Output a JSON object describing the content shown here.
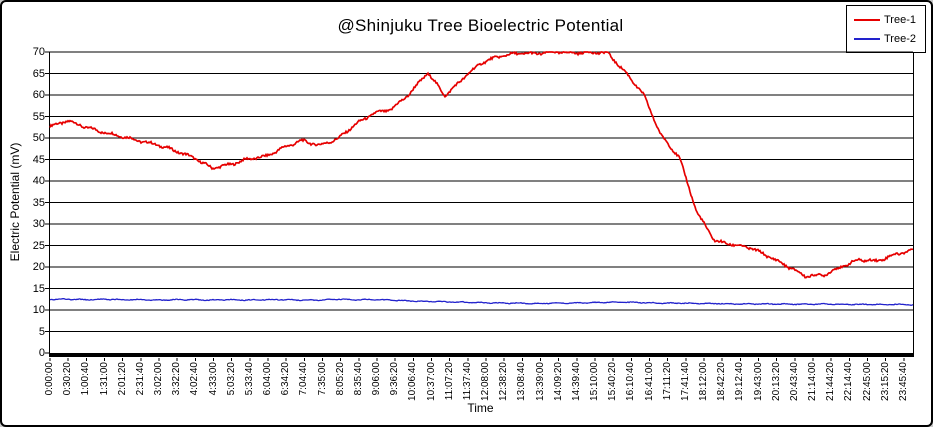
{
  "window": {
    "background": "#ffffff",
    "border_color": "#000000"
  },
  "chart_data": {
    "type": "line",
    "title": "@Shinjuku Tree Bioelectric Potential",
    "xlabel": "Time",
    "ylabel": "Electric Potential (mV)",
    "ylim": [
      0,
      70
    ],
    "y_tick_step": 5,
    "y_ticks": [
      0,
      5,
      10,
      15,
      20,
      25,
      30,
      35,
      40,
      45,
      50,
      55,
      60,
      65,
      70
    ],
    "grid": "horizontal-only",
    "legend_position": "top-right",
    "x_tick_labels": [
      "0:00:00",
      "0:30:20",
      "1:00:40",
      "1:31:00",
      "2:01:20",
      "2:31:40",
      "3:02:00",
      "3:32:20",
      "4:02:40",
      "4:33:00",
      "5:03:20",
      "5:33:40",
      "6:04:00",
      "6:34:20",
      "7:04:40",
      "7:35:00",
      "8:05:20",
      "8:35:40",
      "9:06:00",
      "9:36:20",
      "10:06:40",
      "10:37:00",
      "11:07:20",
      "11:37:40",
      "12:08:00",
      "12:38:20",
      "13:08:40",
      "13:39:00",
      "14:09:20",
      "14:39:40",
      "15:10:00",
      "15:40:20",
      "16:10:40",
      "16:41:00",
      "17:11:20",
      "17:41:40",
      "18:12:00",
      "18:42:20",
      "19:12:40",
      "19:43:00",
      "20:13:20",
      "20:43:40",
      "21:14:00",
      "21:44:20",
      "22:14:40",
      "22:45:00",
      "23:15:20",
      "23:45:40"
    ],
    "series": [
      {
        "name": "Tree-1",
        "color": "#e60000",
        "values": [
          52.7,
          54.0,
          52.5,
          51.3,
          50.4,
          49.3,
          48.4,
          47.0,
          45.4,
          43.0,
          43.8,
          45.1,
          45.7,
          47.8,
          49.4,
          48.3,
          49.8,
          53.2,
          55.7,
          56.7,
          60.3,
          65.2,
          59.8,
          64.0,
          67.5,
          69.0,
          69.7,
          69.6,
          70.0,
          69.8,
          69.9,
          69.8,
          65.3,
          60.2,
          50.5,
          45.5,
          32.5,
          26.0,
          25.2,
          24.4,
          22.4,
          20.2,
          17.9,
          18.1,
          20.0,
          21.7,
          21.4,
          22.9,
          24.0
        ]
      },
      {
        "name": "Tree-2",
        "color": "#2222cc",
        "values": [
          12.5,
          12.5,
          12.4,
          12.5,
          12.4,
          12.4,
          12.3,
          12.4,
          12.4,
          12.3,
          12.4,
          12.3,
          12.4,
          12.4,
          12.3,
          12.3,
          12.5,
          12.4,
          12.4,
          12.3,
          12.1,
          12.0,
          11.9,
          11.8,
          11.7,
          11.6,
          11.6,
          11.5,
          11.6,
          11.6,
          11.7,
          11.8,
          11.8,
          11.7,
          11.6,
          11.6,
          11.5,
          11.5,
          11.4,
          11.4,
          11.4,
          11.4,
          11.3,
          11.4,
          11.3,
          11.3,
          11.3,
          11.3,
          11.2
        ]
      }
    ]
  }
}
